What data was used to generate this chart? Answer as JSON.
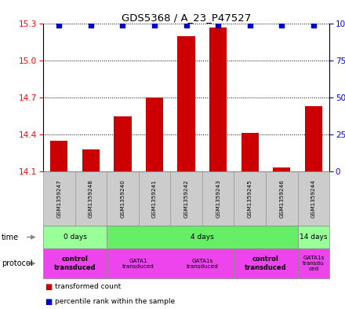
{
  "title": "GDS5368 / A_23_P47527",
  "samples": [
    "GSM1359247",
    "GSM1359248",
    "GSM1359240",
    "GSM1359241",
    "GSM1359242",
    "GSM1359243",
    "GSM1359245",
    "GSM1359246",
    "GSM1359244"
  ],
  "bar_values": [
    14.35,
    14.28,
    14.55,
    14.7,
    15.2,
    15.27,
    14.41,
    14.13,
    14.63
  ],
  "ylim_left": [
    14.1,
    15.3
  ],
  "yticks_left": [
    14.1,
    14.4,
    14.7,
    15.0,
    15.3
  ],
  "yticks_right": [
    0,
    25,
    50,
    75,
    100
  ],
  "bar_color": "#cc0000",
  "dot_color": "#0000cc",
  "bg_color": "#ffffff",
  "time_groups": [
    {
      "label": "0 days",
      "start": 0,
      "end": 2,
      "color": "#99ff99"
    },
    {
      "label": "4 days",
      "start": 2,
      "end": 8,
      "color": "#66ee66"
    },
    {
      "label": "14 days",
      "start": 8,
      "end": 9,
      "color": "#99ff99"
    }
  ],
  "protocol_groups": [
    {
      "label": "control\ntransduced",
      "start": 0,
      "end": 2,
      "color": "#ee44ee",
      "bold": true
    },
    {
      "label": "GATA1\ntransduced",
      "start": 2,
      "end": 4,
      "color": "#ee44ee",
      "bold": false
    },
    {
      "label": "GATA1s\ntransduced",
      "start": 4,
      "end": 6,
      "color": "#ee44ee",
      "bold": false
    },
    {
      "label": "control\ntransduced",
      "start": 6,
      "end": 8,
      "color": "#ee44ee",
      "bold": true
    },
    {
      "label": "GATA1s\ntransdu\nced",
      "start": 8,
      "end": 9,
      "color": "#ee44ee",
      "bold": false
    }
  ],
  "sample_bg_color": "#cccccc",
  "sample_border_color": "#999999"
}
